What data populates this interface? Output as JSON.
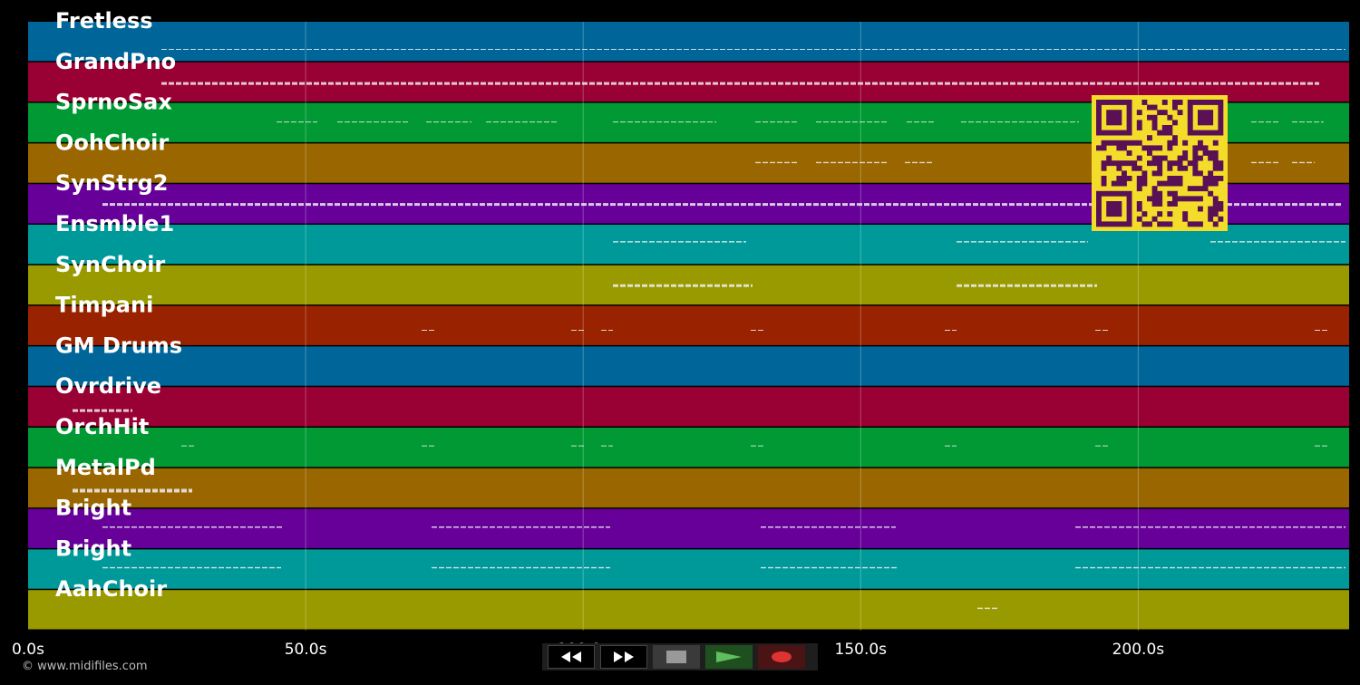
{
  "tracks": [
    {
      "name": "Fretless",
      "color": "#006699"
    },
    {
      "name": "GrandPno",
      "color": "#990033"
    },
    {
      "name": "SprnoSax",
      "color": "#009933"
    },
    {
      "name": "OohChoir",
      "color": "#996600"
    },
    {
      "name": "SynStrg2",
      "color": "#660099"
    },
    {
      "name": "Ensmble1",
      "color": "#009999"
    },
    {
      "name": "SynChoir",
      "color": "#999900"
    },
    {
      "name": "Timpani",
      "color": "#992200"
    },
    {
      "name": "GM Drums",
      "color": "#006699"
    },
    {
      "name": "Ovrdrive",
      "color": "#990033"
    },
    {
      "name": "OrchHit",
      "color": "#009933"
    },
    {
      "name": "MetalPd",
      "color": "#996600"
    },
    {
      "name": "Bright",
      "color": "#660099"
    },
    {
      "name": "Bright",
      "color": "#009999"
    },
    {
      "name": "AahChoir",
      "color": "#999900"
    }
  ],
  "time_axis": {
    "unit": "s",
    "max": 238,
    "ticks": [
      {
        "value": 0,
        "label": "0.0s"
      },
      {
        "value": 50,
        "label": "50.0s"
      },
      {
        "value": 100,
        "label": "100.0s"
      },
      {
        "value": 150,
        "label": "150.0s"
      },
      {
        "value": 200,
        "label": "200.0s"
      }
    ]
  },
  "qr_color": "#f4dc2a",
  "qr_dark": "#5a1055",
  "controls": {
    "rewind": "rewind-icon",
    "fast_forward": "fast-forward-icon",
    "stop": "stop-icon",
    "play": "play-icon",
    "record": "record-icon"
  },
  "copyright": "© www.midifiles.com"
}
